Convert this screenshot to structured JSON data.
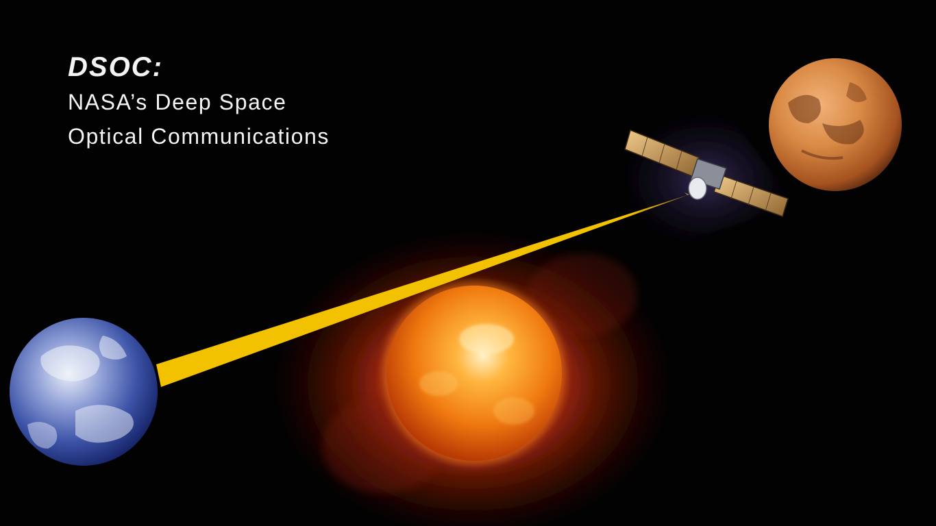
{
  "heading": {
    "title": "DSOC:",
    "subtitle_line1": "NASA’s Deep Space",
    "subtitle_line2": "Optical Communications"
  },
  "scene": {
    "objects": [
      "earth",
      "sun",
      "mars",
      "spacecraft",
      "laser-beam"
    ],
    "colors": {
      "background": "#020202",
      "beam": "#f2c200",
      "earth": "#4a63b8",
      "sun": "#f07a10",
      "mars": "#d98a45",
      "text": "#f4f4f4"
    }
  }
}
